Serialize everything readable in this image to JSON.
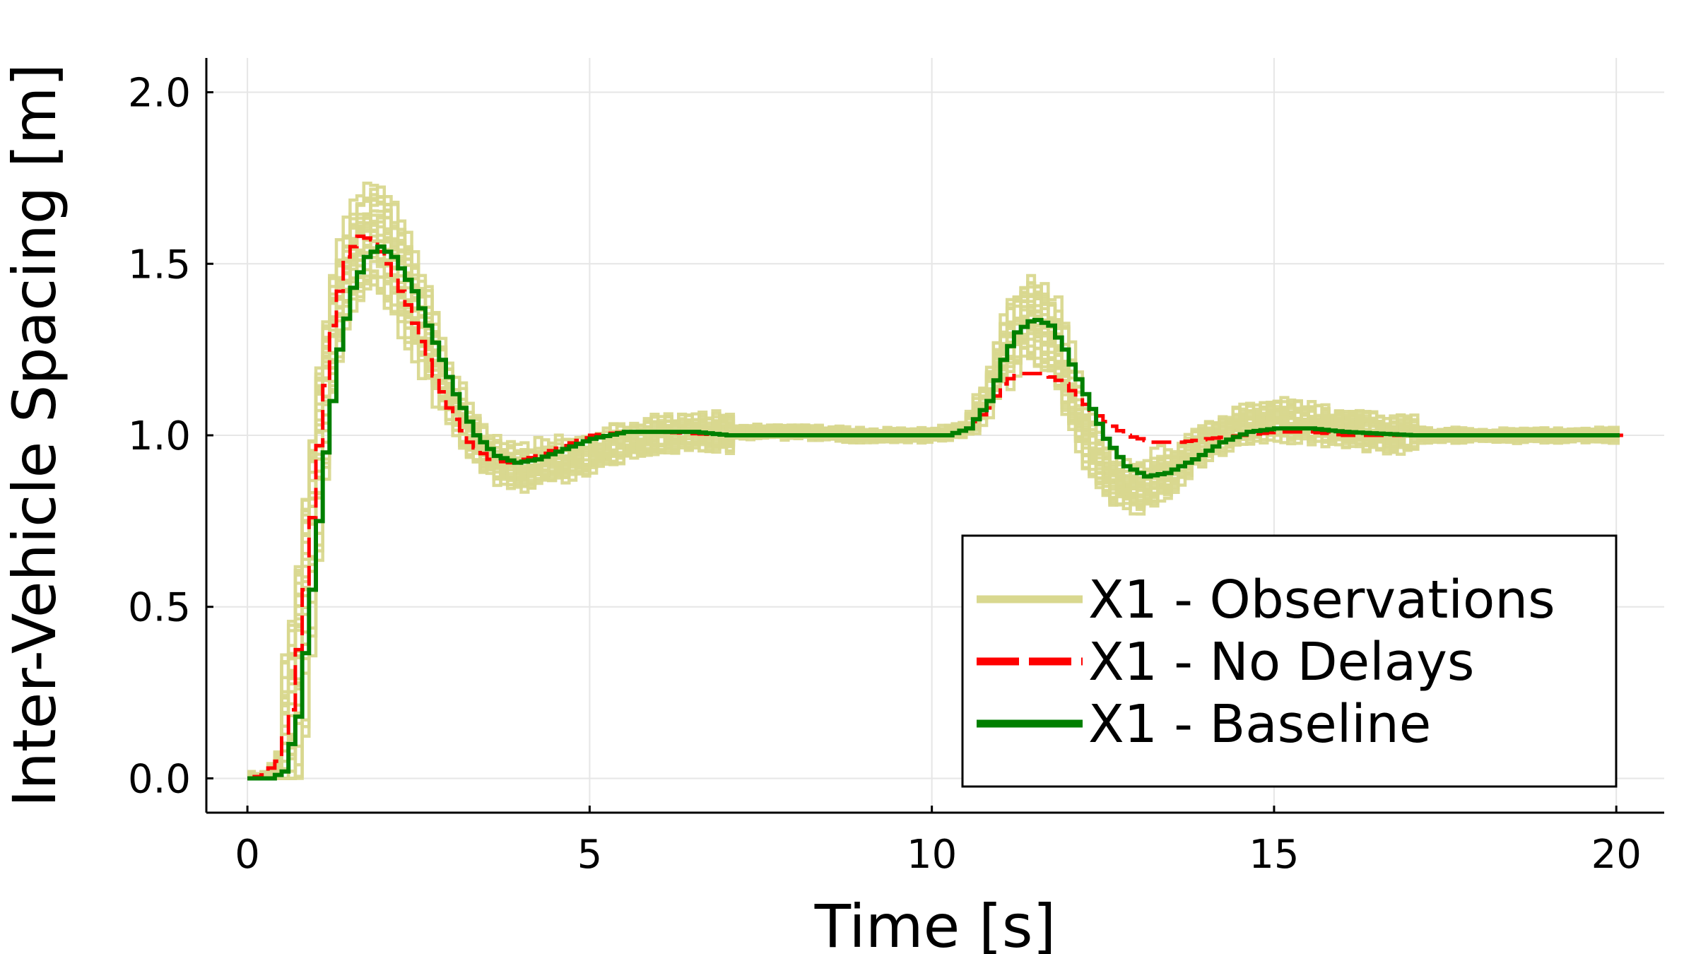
{
  "chart_data": {
    "type": "line",
    "title": "",
    "xlabel": "Time [s]",
    "ylabel": "Inter-Vehicle Spacing [m]",
    "xlim": [
      -0.6,
      20.7
    ],
    "ylim": [
      -0.1,
      2.1
    ],
    "xticks": [
      0,
      5,
      10,
      15,
      20
    ],
    "xtick_labels": [
      "0",
      "5",
      "10",
      "15",
      "20"
    ],
    "yticks": [
      0.0,
      0.5,
      1.0,
      1.5,
      2.0
    ],
    "ytick_labels": [
      "0.0",
      "0.5",
      "1.0",
      "1.5",
      "2.0"
    ],
    "grid": true,
    "legend_position": "bottom-right",
    "step_dt": 0.1,
    "series": [
      {
        "name": "X1 - Observations",
        "color": "#d9d88f",
        "style": "solid",
        "note": "ensemble of noisy observation traces",
        "mean_points": [
          [
            0,
            0.0
          ],
          [
            0.3,
            0.0
          ],
          [
            0.5,
            0.05
          ],
          [
            0.7,
            0.3
          ],
          [
            0.9,
            0.75
          ],
          [
            1.1,
            1.15
          ],
          [
            1.3,
            1.4
          ],
          [
            1.5,
            1.52
          ],
          [
            1.7,
            1.58
          ],
          [
            1.9,
            1.58
          ],
          [
            2.2,
            1.48
          ],
          [
            2.5,
            1.32
          ],
          [
            2.8,
            1.17
          ],
          [
            3.1,
            1.04
          ],
          [
            3.4,
            0.96
          ],
          [
            3.7,
            0.91
          ],
          [
            4.0,
            0.9
          ],
          [
            4.5,
            0.92
          ],
          [
            5.0,
            0.95
          ],
          [
            5.5,
            0.98
          ],
          [
            6.0,
            1.0
          ],
          [
            7.0,
            1.01
          ],
          [
            8.0,
            1.01
          ],
          [
            9.0,
            1.0
          ],
          [
            10.0,
            1.0
          ],
          [
            10.5,
            1.02
          ],
          [
            10.8,
            1.12
          ],
          [
            11.1,
            1.28
          ],
          [
            11.4,
            1.36
          ],
          [
            11.7,
            1.3
          ],
          [
            12.0,
            1.12
          ],
          [
            12.3,
            0.96
          ],
          [
            12.6,
            0.86
          ],
          [
            13.0,
            0.84
          ],
          [
            13.5,
            0.9
          ],
          [
            14.0,
            0.98
          ],
          [
            14.5,
            1.03
          ],
          [
            15.0,
            1.05
          ],
          [
            15.5,
            1.04
          ],
          [
            16.0,
            1.02
          ],
          [
            17.0,
            1.0
          ],
          [
            18.0,
            1.0
          ],
          [
            20.0,
            1.0
          ]
        ],
        "sample_count": 30
      },
      {
        "name": "X1 - No Delays",
        "color": "#ff0000",
        "style": "dashed",
        "points": [
          [
            0,
            0.0
          ],
          [
            0.2,
            0.01
          ],
          [
            0.4,
            0.05
          ],
          [
            0.6,
            0.2
          ],
          [
            0.8,
            0.55
          ],
          [
            1.0,
            0.97
          ],
          [
            1.2,
            1.32
          ],
          [
            1.4,
            1.52
          ],
          [
            1.6,
            1.58
          ],
          [
            1.8,
            1.57
          ],
          [
            2.0,
            1.5
          ],
          [
            2.3,
            1.38
          ],
          [
            2.6,
            1.22
          ],
          [
            2.9,
            1.08
          ],
          [
            3.2,
            0.98
          ],
          [
            3.5,
            0.93
          ],
          [
            3.8,
            0.92
          ],
          [
            4.2,
            0.94
          ],
          [
            4.6,
            0.97
          ],
          [
            5.0,
            1.0
          ],
          [
            5.5,
            1.01
          ],
          [
            6.0,
            1.01
          ],
          [
            7.0,
            1.0
          ],
          [
            9.0,
            1.0
          ],
          [
            10.2,
            1.0
          ],
          [
            10.5,
            1.02
          ],
          [
            10.8,
            1.08
          ],
          [
            11.0,
            1.15
          ],
          [
            11.2,
            1.18
          ],
          [
            11.6,
            1.18
          ],
          [
            11.9,
            1.15
          ],
          [
            12.2,
            1.09
          ],
          [
            12.5,
            1.04
          ],
          [
            12.8,
            1.0
          ],
          [
            13.2,
            0.98
          ],
          [
            13.6,
            0.98
          ],
          [
            14.0,
            0.99
          ],
          [
            14.5,
            1.0
          ],
          [
            15.0,
            1.01
          ],
          [
            15.5,
            1.01
          ],
          [
            16.0,
            1.0
          ],
          [
            18.0,
            1.0
          ],
          [
            20.0,
            1.0
          ]
        ]
      },
      {
        "name": "X1 - Baseline",
        "color": "#007f00",
        "style": "solid",
        "points": [
          [
            0,
            0.0
          ],
          [
            0.3,
            0.0
          ],
          [
            0.5,
            0.02
          ],
          [
            0.7,
            0.18
          ],
          [
            0.9,
            0.55
          ],
          [
            1.1,
            0.95
          ],
          [
            1.3,
            1.25
          ],
          [
            1.5,
            1.43
          ],
          [
            1.7,
            1.52
          ],
          [
            1.9,
            1.55
          ],
          [
            2.1,
            1.52
          ],
          [
            2.4,
            1.42
          ],
          [
            2.7,
            1.27
          ],
          [
            3.0,
            1.12
          ],
          [
            3.3,
            1.0
          ],
          [
            3.6,
            0.94
          ],
          [
            3.9,
            0.92
          ],
          [
            4.2,
            0.93
          ],
          [
            4.6,
            0.96
          ],
          [
            5.0,
            0.99
          ],
          [
            5.5,
            1.01
          ],
          [
            6.0,
            1.01
          ],
          [
            6.5,
            1.01
          ],
          [
            7.0,
            1.0
          ],
          [
            8.0,
            1.0
          ],
          [
            10.2,
            1.0
          ],
          [
            10.5,
            1.02
          ],
          [
            10.8,
            1.1
          ],
          [
            11.0,
            1.22
          ],
          [
            11.2,
            1.3
          ],
          [
            11.45,
            1.34
          ],
          [
            11.7,
            1.32
          ],
          [
            11.9,
            1.25
          ],
          [
            12.2,
            1.12
          ],
          [
            12.5,
            0.99
          ],
          [
            12.8,
            0.91
          ],
          [
            13.1,
            0.88
          ],
          [
            13.4,
            0.89
          ],
          [
            13.8,
            0.93
          ],
          [
            14.2,
            0.98
          ],
          [
            14.6,
            1.01
          ],
          [
            15.0,
            1.02
          ],
          [
            15.5,
            1.02
          ],
          [
            16.0,
            1.01
          ],
          [
            17.0,
            1.0
          ],
          [
            20.0,
            1.0
          ]
        ]
      }
    ]
  }
}
